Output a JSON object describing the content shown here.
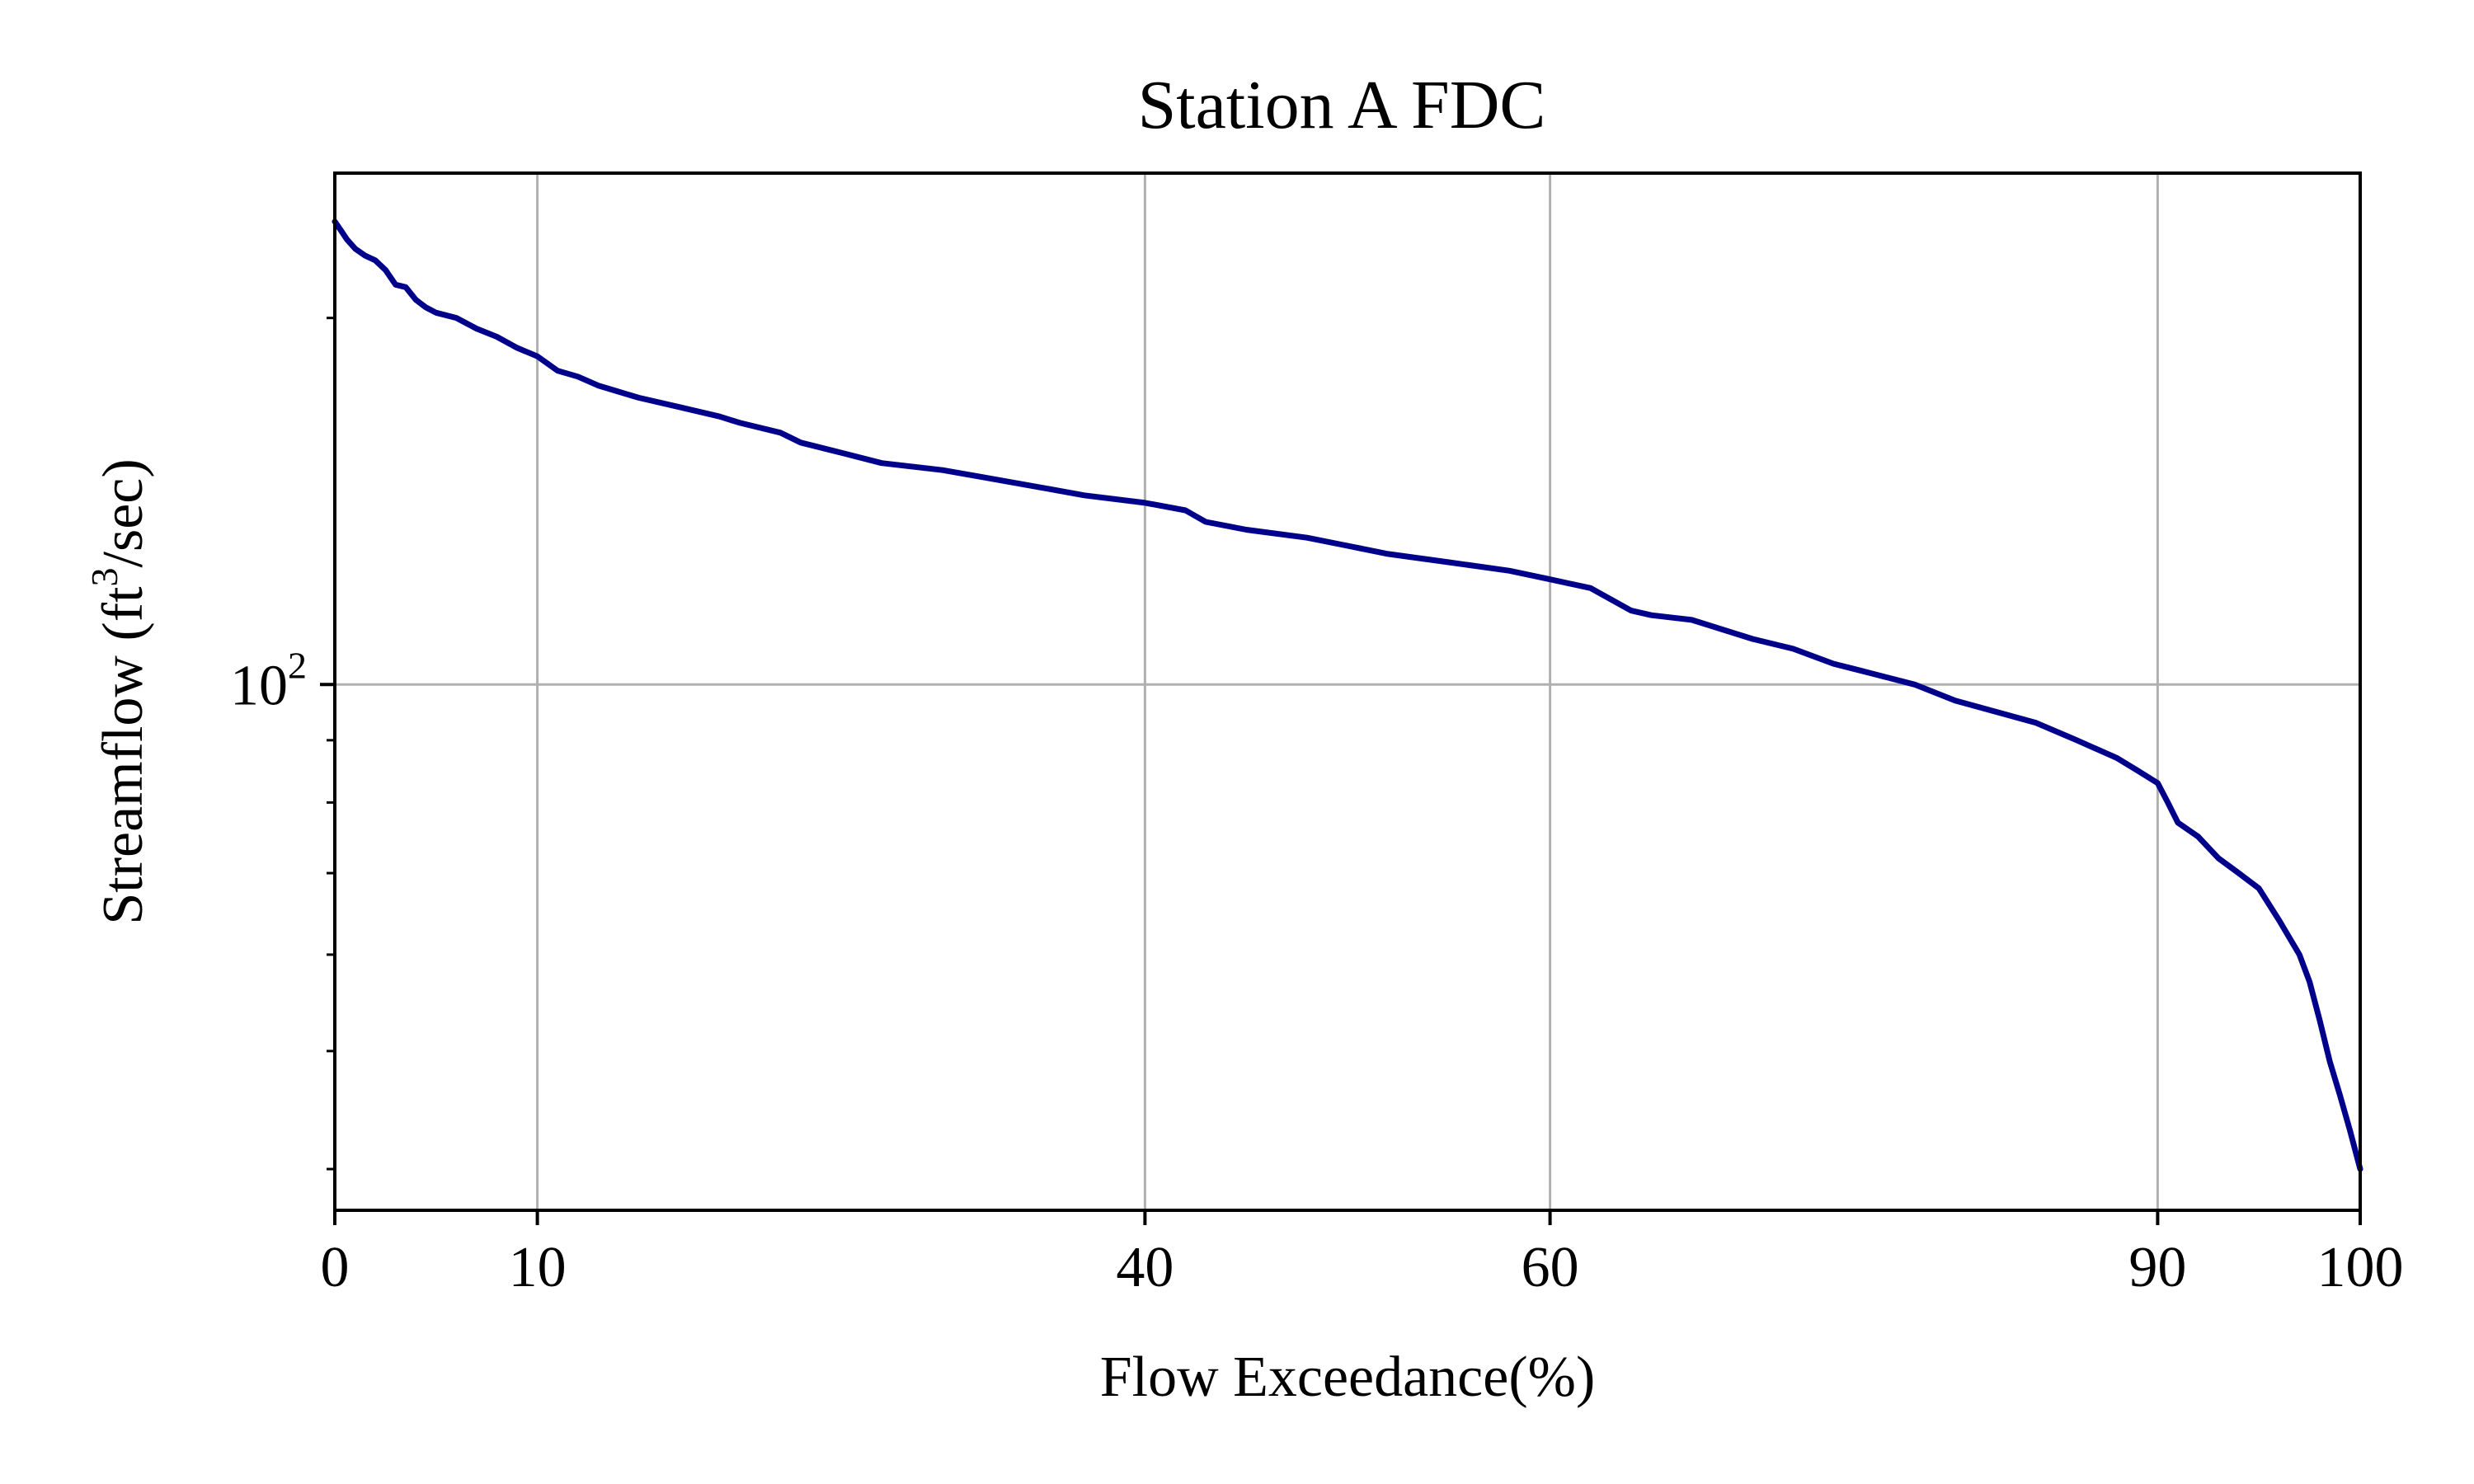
{
  "chart_data": {
    "type": "line",
    "title": "Station A FDC",
    "xlabel": "Flow Exceedance(%)",
    "ylabel": {
      "main": "Streamflow (ft",
      "superscript": "3",
      "tail": "/sec)"
    },
    "x_scale": "linear",
    "y_scale": "log",
    "xlim": [
      0,
      100
    ],
    "ylim": [
      37,
      263
    ],
    "xticks": [
      0,
      10,
      40,
      60,
      90,
      100
    ],
    "yticks": [
      {
        "value": 100,
        "base": "10",
        "exponent": "2"
      }
    ],
    "grid": true,
    "series": [
      {
        "color": "#00008B",
        "x": [
          0,
          0.3,
          0.6,
          1,
          1.5,
          2,
          2.5,
          3,
          3.5,
          4,
          4.5,
          5,
          6,
          7,
          8,
          9,
          10,
          11,
          12,
          13,
          14,
          15,
          17,
          19,
          20,
          22,
          23,
          25,
          27,
          30,
          32,
          35,
          37,
          40,
          42,
          43,
          45,
          48,
          50,
          52,
          55,
          58,
          60,
          62,
          64,
          65,
          67,
          70,
          72,
          74,
          75,
          76,
          78,
          80,
          82,
          84,
          86,
          88,
          89,
          90,
          90.5,
          91,
          92,
          93,
          94,
          95,
          96,
          97,
          97.5,
          98,
          98.5,
          99,
          99.5,
          100
        ],
        "y": [
          240,
          236,
          232,
          228,
          225,
          223,
          219,
          213,
          212,
          207,
          204,
          202,
          200,
          196,
          193,
          189,
          186,
          181,
          179,
          176,
          174,
          172,
          169,
          166,
          164,
          161,
          158,
          155,
          152,
          150,
          148,
          145,
          143,
          141,
          139,
          136,
          134,
          132,
          130,
          128,
          126,
          124,
          122,
          120,
          115,
          114,
          113,
          109,
          107,
          104,
          103,
          102,
          100,
          97,
          95,
          93,
          90,
          87,
          85,
          83,
          80,
          77,
          75,
          72,
          70,
          68,
          64,
          60,
          57,
          53,
          49,
          46,
          43,
          40
        ]
      }
    ]
  }
}
